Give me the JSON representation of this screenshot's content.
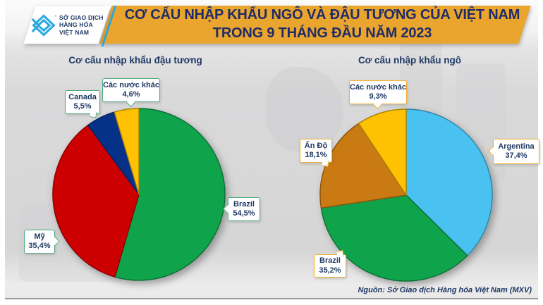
{
  "header": {
    "title_line1": "CƠ CẤU NHẬP KHẨU NGÔ VÀ ĐẬU TƯƠNG CỦA VIỆT NAM",
    "title_line2": "TRONG 9 THÁNG ĐẦU NĂM 2023",
    "banner_color": "#EAA52F",
    "title_text_color": "#1F2C66",
    "logo": {
      "line1": "SỞ GIAO DỊCH",
      "line2": "HÀNG HÓA",
      "line3": "VIỆT NAM",
      "icon": "mxv-diamond-chevron-icon",
      "icon_color": "#29A9E1"
    }
  },
  "chart_data": [
    {
      "type": "pie",
      "title": "Cơ cấu nhập khẩu đậu tương",
      "start_angle_deg": 0,
      "direction": "clockwise",
      "legend_style": "callout-labels",
      "callout_border_color": "#4DAD7A",
      "slices": [
        {
          "label": "Brazil",
          "value": 54.5,
          "display": "54,5%",
          "color": "#0FA34B"
        },
        {
          "label": "Mỹ",
          "value": 35.4,
          "display": "35,4%",
          "color": "#CC0000"
        },
        {
          "label": "Canada",
          "value": 5.5,
          "display": "5,5%",
          "color": "#063189"
        },
        {
          "label": "Các nước khác",
          "value": 4.6,
          "display": "4,6%",
          "color": "#FFC103"
        }
      ]
    },
    {
      "type": "pie",
      "title": "Cơ cấu nhập khẩu ngô",
      "start_angle_deg": 0,
      "direction": "clockwise",
      "legend_style": "callout-labels",
      "callout_border_color": "#F2B02D",
      "slices": [
        {
          "label": "Argentina",
          "value": 37.4,
          "display": "37,4%",
          "color": "#49C2F1"
        },
        {
          "label": "Brazil",
          "value": 35.2,
          "display": "35,2%",
          "color": "#0FA34B"
        },
        {
          "label": "Ấn Độ",
          "value": 18.1,
          "display": "18,1%",
          "color": "#C97A12"
        },
        {
          "label": "Các nước khác",
          "value": 9.3,
          "display": "9,3%",
          "color": "#FFC103"
        }
      ]
    }
  ],
  "source": "Nguồn: Sở Giao dịch Hàng hóa Việt Nam (MXV)",
  "background_color": "#D8D8D9"
}
